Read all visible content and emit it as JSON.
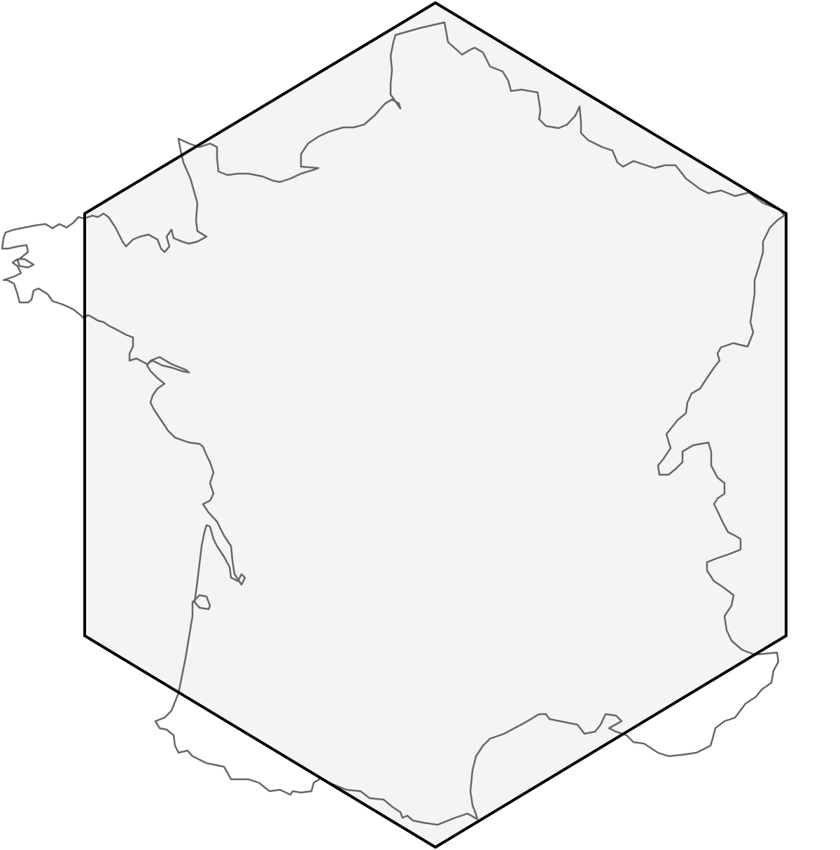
{
  "map": {
    "type": "outline-map",
    "region": "France",
    "frame_shape": "hexagon",
    "labels": [],
    "colors": {
      "background": "#ffffff",
      "hexagon_fill": "#f4f4f4",
      "hexagon_stroke": "#000000",
      "border_stroke": "#666666"
    }
  }
}
